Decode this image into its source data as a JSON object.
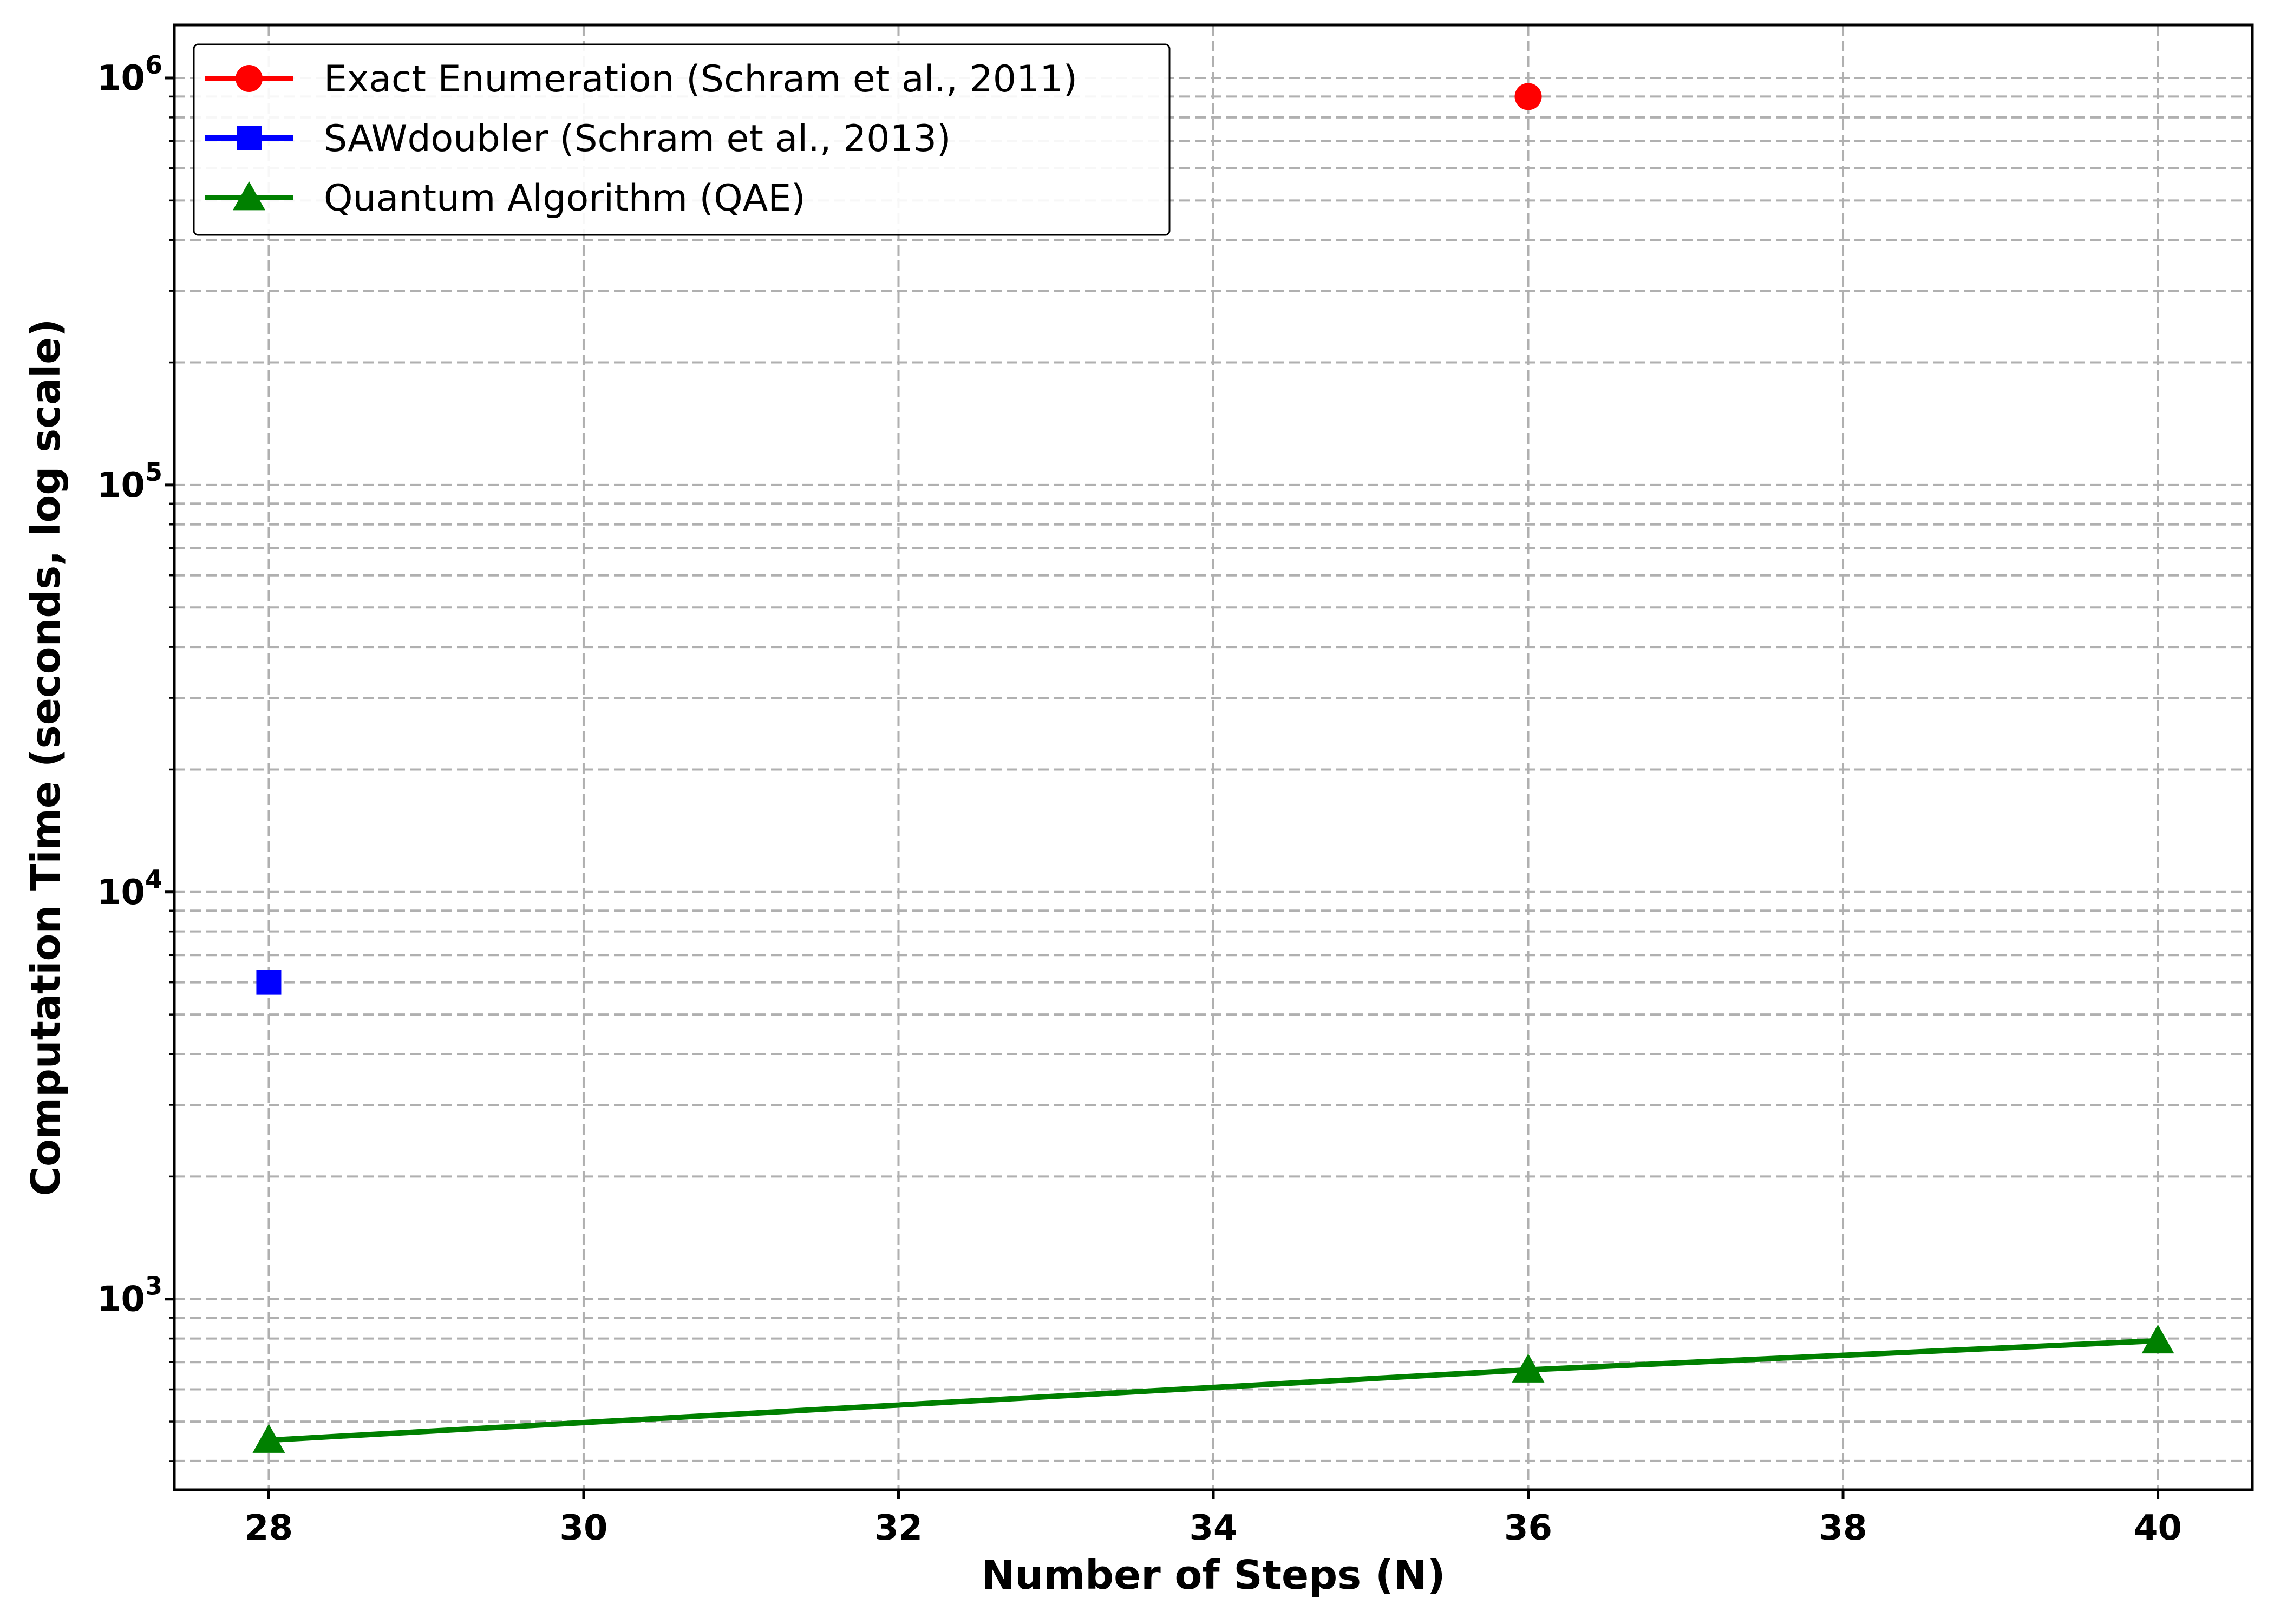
{
  "chart_data": {
    "type": "line",
    "title": "",
    "xlabel": "Number of Steps (N)",
    "ylabel": "Computation Time (seconds, log scale)",
    "y_scale": "log",
    "xlim": [
      27.4,
      40.6
    ],
    "ylim": [
      340,
      1350000
    ],
    "x_ticks": [
      28,
      30,
      32,
      34,
      36,
      38,
      40
    ],
    "y_ticks": [
      {
        "value": 1000,
        "base": "10",
        "exp": "3"
      },
      {
        "value": 10000,
        "base": "10",
        "exp": "4"
      },
      {
        "value": 100000,
        "base": "10",
        "exp": "5"
      },
      {
        "value": 1000000,
        "base": "10",
        "exp": "6"
      }
    ],
    "grid": true,
    "legend_position": "top-left",
    "series": [
      {
        "name": "Exact Enumeration (Schram et al., 2011)",
        "color": "#ff0000",
        "marker": "circle",
        "points": [
          {
            "x": 36,
            "y": 900000
          }
        ]
      },
      {
        "name": "SAWdoubler (Schram et al., 2013)",
        "color": "#0000ff",
        "marker": "square",
        "points": [
          {
            "x": 28,
            "y": 6000
          }
        ]
      },
      {
        "name": "Quantum Algorithm (QAE)",
        "color": "#008000",
        "marker": "triangle",
        "points": [
          {
            "x": 28,
            "y": 450
          },
          {
            "x": 36,
            "y": 670
          },
          {
            "x": 40,
            "y": 790
          }
        ]
      }
    ]
  }
}
